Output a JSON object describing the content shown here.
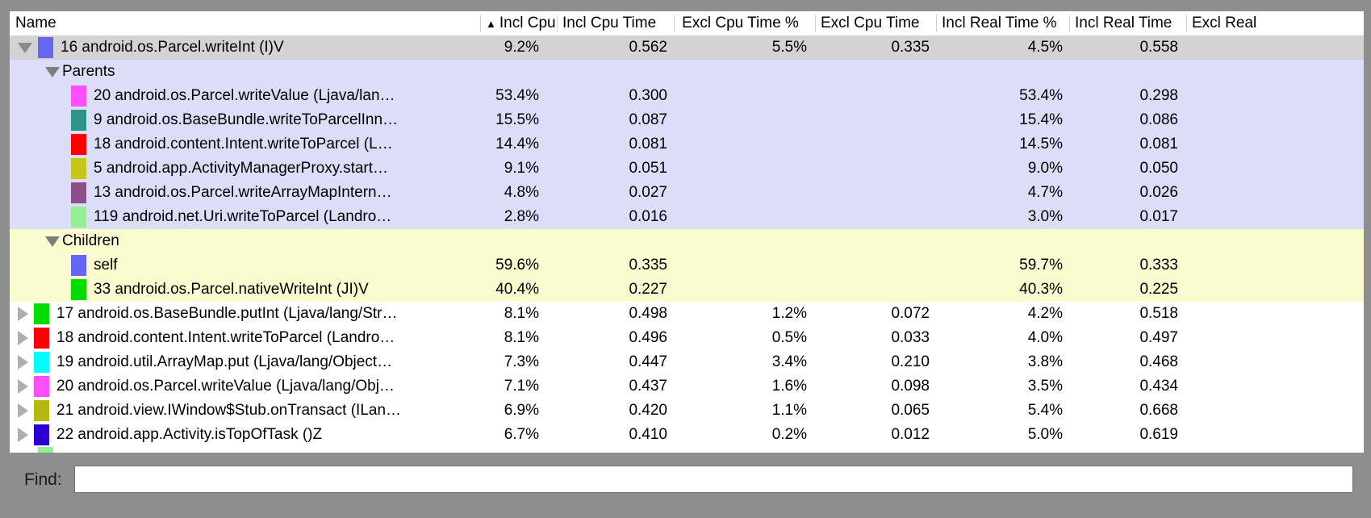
{
  "table": {
    "columns": [
      {
        "id": "name",
        "label": "Name"
      },
      {
        "id": "incl-cpu-pct",
        "label": "Incl Cpu Tir",
        "sort_indicator": "asc"
      },
      {
        "id": "incl-cpu-time",
        "label": "Incl Cpu Time"
      },
      {
        "id": "excl-cpu-pct",
        "label": "Excl Cpu Time %"
      },
      {
        "id": "excl-cpu-time",
        "label": "Excl Cpu Time"
      },
      {
        "id": "incl-real-pct",
        "label": "Incl Real Time %"
      },
      {
        "id": "incl-real-time",
        "label": "Incl Real Time"
      },
      {
        "id": "excl-real",
        "label": "Excl Real"
      }
    ],
    "rows": [
      {
        "kind": "method",
        "indent": 0,
        "expander": "down",
        "swatch": "#6566f1",
        "name": "16 android.os.Parcel.writeInt (I)V",
        "values": [
          "9.2%",
          "0.562",
          "5.5%",
          "0.335",
          "4.5%",
          "0.558"
        ],
        "bg": "selected",
        "selected": true
      },
      {
        "kind": "section",
        "indent": 1,
        "expander": "down",
        "name": "Parents",
        "values": [
          "",
          "",
          "",
          "",
          "",
          ""
        ],
        "bg": "parents"
      },
      {
        "kind": "method",
        "indent": 2,
        "expander": "none",
        "swatch": "#fb4ff9",
        "name": "20 android.os.Parcel.writeValue (Ljava/lan…",
        "values": [
          "53.4%",
          "0.300",
          "",
          "",
          "53.4%",
          "0.298"
        ],
        "bg": "parents"
      },
      {
        "kind": "method",
        "indent": 2,
        "expander": "none",
        "swatch": "#2d9288",
        "name": "9 android.os.BaseBundle.writeToParcelInn…",
        "values": [
          "15.5%",
          "0.087",
          "",
          "",
          "15.4%",
          "0.086"
        ],
        "bg": "parents"
      },
      {
        "kind": "method",
        "indent": 2,
        "expander": "none",
        "swatch": "#fe0000",
        "name": "18 android.content.Intent.writeToParcel (L…",
        "values": [
          "14.4%",
          "0.081",
          "",
          "",
          "14.5%",
          "0.081"
        ],
        "bg": "parents"
      },
      {
        "kind": "method",
        "indent": 2,
        "expander": "none",
        "swatch": "#c6c618",
        "name": "5 android.app.ActivityManagerProxy.start…",
        "values": [
          "9.1%",
          "0.051",
          "",
          "",
          "9.0%",
          "0.050"
        ],
        "bg": "parents"
      },
      {
        "kind": "method",
        "indent": 2,
        "expander": "none",
        "swatch": "#8d4f89",
        "name": "13 android.os.Parcel.writeArrayMapIntern…",
        "values": [
          "4.8%",
          "0.027",
          "",
          "",
          "4.7%",
          "0.026"
        ],
        "bg": "parents"
      },
      {
        "kind": "method",
        "indent": 2,
        "expander": "none",
        "swatch": "#92ee92",
        "name": "119 android.net.Uri.writeToParcel (Landro…",
        "values": [
          "2.8%",
          "0.016",
          "",
          "",
          "3.0%",
          "0.017"
        ],
        "bg": "parents"
      },
      {
        "kind": "section",
        "indent": 1,
        "expander": "down",
        "name": "Children",
        "values": [
          "",
          "",
          "",
          "",
          "",
          ""
        ],
        "bg": "children"
      },
      {
        "kind": "method",
        "indent": 2,
        "expander": "none",
        "swatch": "#6566f1",
        "name": "self",
        "values": [
          "59.6%",
          "0.335",
          "",
          "",
          "59.7%",
          "0.333"
        ],
        "bg": "children"
      },
      {
        "kind": "method",
        "indent": 2,
        "expander": "none",
        "swatch": "#02dc02",
        "name": "33 android.os.Parcel.nativeWriteInt (JI)V",
        "values": [
          "40.4%",
          "0.227",
          "",
          "",
          "40.3%",
          "0.225"
        ],
        "bg": "children"
      },
      {
        "kind": "method",
        "indent": 0,
        "expander": "right",
        "swatch": "#02dc02",
        "name": "17 android.os.BaseBundle.putInt (Ljava/lang/Str…",
        "values": [
          "8.1%",
          "0.498",
          "1.2%",
          "0.072",
          "4.2%",
          "0.518"
        ],
        "bg": "white"
      },
      {
        "kind": "method",
        "indent": 0,
        "expander": "right",
        "swatch": "#fe0000",
        "name": "18 android.content.Intent.writeToParcel (Landro…",
        "values": [
          "8.1%",
          "0.496",
          "0.5%",
          "0.033",
          "4.0%",
          "0.497"
        ],
        "bg": "white"
      },
      {
        "kind": "method",
        "indent": 0,
        "expander": "right",
        "swatch": "#00feff",
        "name": "19 android.util.ArrayMap.put (Ljava/lang/Object…",
        "values": [
          "7.3%",
          "0.447",
          "3.4%",
          "0.210",
          "3.8%",
          "0.468"
        ],
        "bg": "white"
      },
      {
        "kind": "method",
        "indent": 0,
        "expander": "right",
        "swatch": "#fb4ff9",
        "name": "20 android.os.Parcel.writeValue (Ljava/lang/Obj…",
        "values": [
          "7.1%",
          "0.437",
          "1.6%",
          "0.098",
          "3.5%",
          "0.434"
        ],
        "bg": "white"
      },
      {
        "kind": "method",
        "indent": 0,
        "expander": "right",
        "swatch": "#b7b714",
        "name": "21 android.view.IWindow$Stub.onTransact (ILan…",
        "values": [
          "6.9%",
          "0.420",
          "1.1%",
          "0.065",
          "5.4%",
          "0.668"
        ],
        "bg": "white"
      },
      {
        "kind": "method",
        "indent": 0,
        "expander": "right",
        "swatch": "#2a00d4",
        "name": "22 android.app.Activity.isTopOfTask ()Z",
        "values": [
          "6.7%",
          "0.410",
          "0.2%",
          "0.012",
          "5.0%",
          "0.619"
        ],
        "bg": "white"
      },
      {
        "kind": "partial",
        "indent": 0,
        "expander": "none",
        "swatch": "#92ee92",
        "name": "",
        "values": [
          "",
          "",
          "",
          "",
          "",
          ""
        ],
        "bg": "partial"
      }
    ]
  },
  "find": {
    "label": "Find:",
    "value": "",
    "placeholder": ""
  },
  "colors": {
    "window_frame": "#8e8e8e",
    "selected_row": "#d3d3d3",
    "parents_section": "#dcddf8",
    "children_section": "#fbfbd0",
    "sort_arrow": "#000000"
  }
}
